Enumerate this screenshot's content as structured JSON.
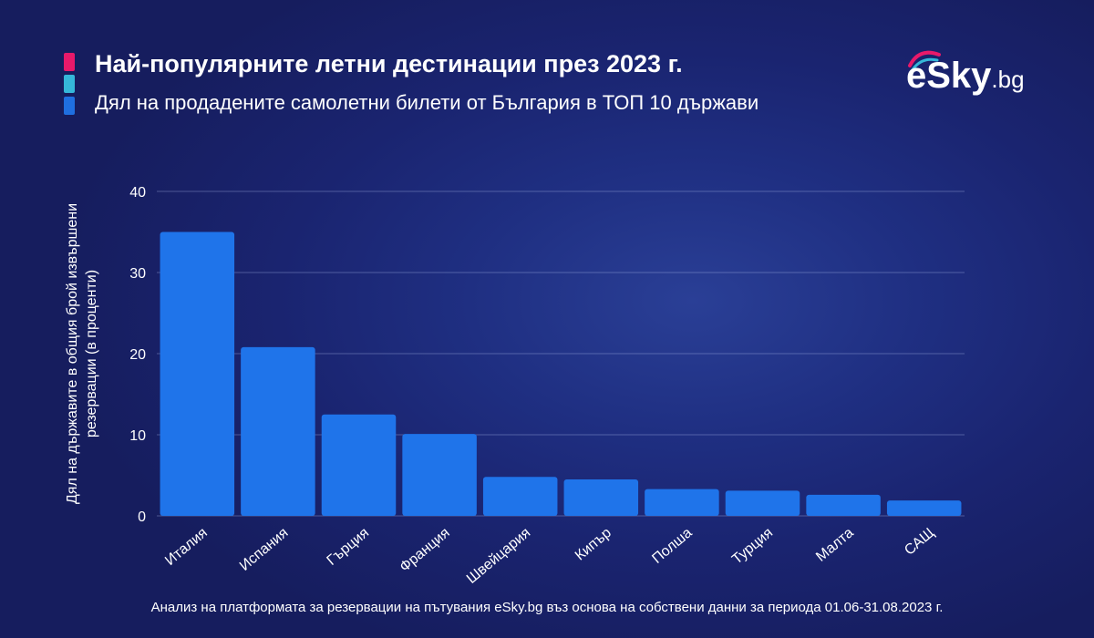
{
  "header": {
    "title": "Най-популярните летни дестинации през 2023 г.",
    "subtitle": "Дял на продадените самолетни билети от България в ТОП 10 държави"
  },
  "logo": {
    "text_e": "e",
    "text_sky": "Sky",
    "text_bg": ".bg"
  },
  "colors": {
    "background": "#1a2470",
    "bar": "#1f74ea",
    "accent_pink": "#e8196a",
    "accent_cyan": "#35b7d9",
    "accent_blue": "#1f6fe0"
  },
  "chart_data": {
    "type": "bar",
    "title": "Най-популярните летни дестинации през 2023 г.",
    "subtitle": "Дял на продадените самолетни билети от България в ТОП 10 държави",
    "xlabel": "",
    "ylabel": "Дял на държавите в общия брой извършени резервации (в проценти)",
    "ylabel_lines": [
      "Дял на държавите в общия брой извършени",
      "резервации (в проценти)"
    ],
    "categories": [
      "Италия",
      "Испания",
      "Гърция",
      "Франция",
      "Швейцария",
      "Кипър",
      "Полша",
      "Турция",
      "Малта",
      "САЩ"
    ],
    "values": [
      35,
      20.8,
      12.5,
      10.1,
      4.8,
      4.5,
      3.3,
      3.1,
      2.6,
      1.9
    ],
    "ylim": [
      0,
      40
    ],
    "yticks": [
      0,
      10,
      20,
      30,
      40
    ],
    "grid": true,
    "legend": "none"
  },
  "footnote": "Анализ на платформата за резервации на пътувания eSky.bg въз основа на собствени данни за периода 01.06-31.08.2023 г."
}
